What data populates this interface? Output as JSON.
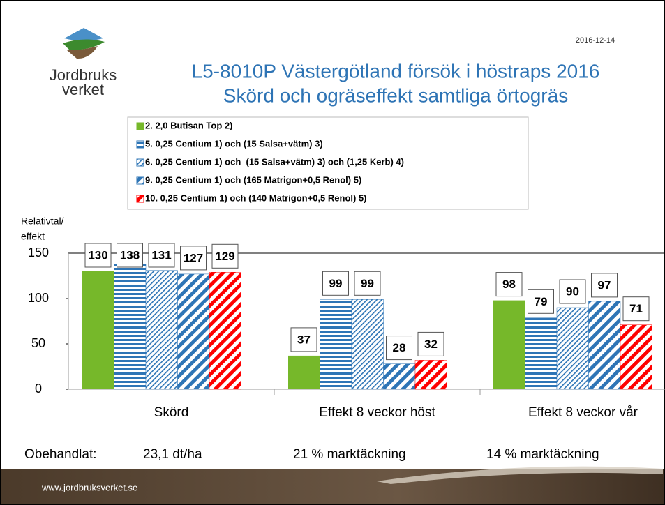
{
  "logo": [
    "Jordbruks",
    "verket"
  ],
  "date": "2016-12-14",
  "footer": "www.jordbruksverket.se",
  "chart_data": {
    "type": "bar",
    "title": [
      "L5-8010P Västergötland försök i höstraps 2016",
      "Skörd och ogräseffekt samtliga örtogräs"
    ],
    "y_label": [
      "Relativtal/",
      "effekt"
    ],
    "categories": [
      "Skörd",
      "Effekt 8 veckor höst",
      "Effekt 8 veckor vår"
    ],
    "series": [
      {
        "name": "2. 2,0 Butisan Top 2)",
        "color": "#76b82a",
        "pattern": "solid",
        "values": [
          130,
          37,
          98
        ]
      },
      {
        "name": "5. 0,25 Centium 1) och (15 Salsa+vätm) 3)",
        "color": "#2e75b6",
        "pattern": "horizontal",
        "values": [
          138,
          99,
          79
        ]
      },
      {
        "name": "6. 0,25 Centium 1) och  (15 Salsa+vätm) 3) och (1,25 Kerb) 4)",
        "color": "#2e75b6",
        "pattern": "thin-diagonal",
        "values": [
          131,
          99,
          90
        ]
      },
      {
        "name": "9. 0,25 Centium 1) och (165 Matrigon+0,5 Renol) 5)",
        "color": "#2e75b6",
        "pattern": "wide-diagonal",
        "values": [
          127,
          28,
          97
        ]
      },
      {
        "name": "10. 0,25 Centium 1) och (140 Matrigon+0,5 Renol) 5)",
        "color": "#ff0000",
        "pattern": "wide-diagonal",
        "values": [
          129,
          32,
          71
        ]
      }
    ],
    "ylim": [
      0,
      150
    ],
    "yticks": [
      0,
      50,
      100,
      150
    ],
    "annotations": [
      "Obehandlat:",
      "23,1 dt/ha",
      "21 % marktäckning",
      "14 % marktäckning"
    ]
  }
}
